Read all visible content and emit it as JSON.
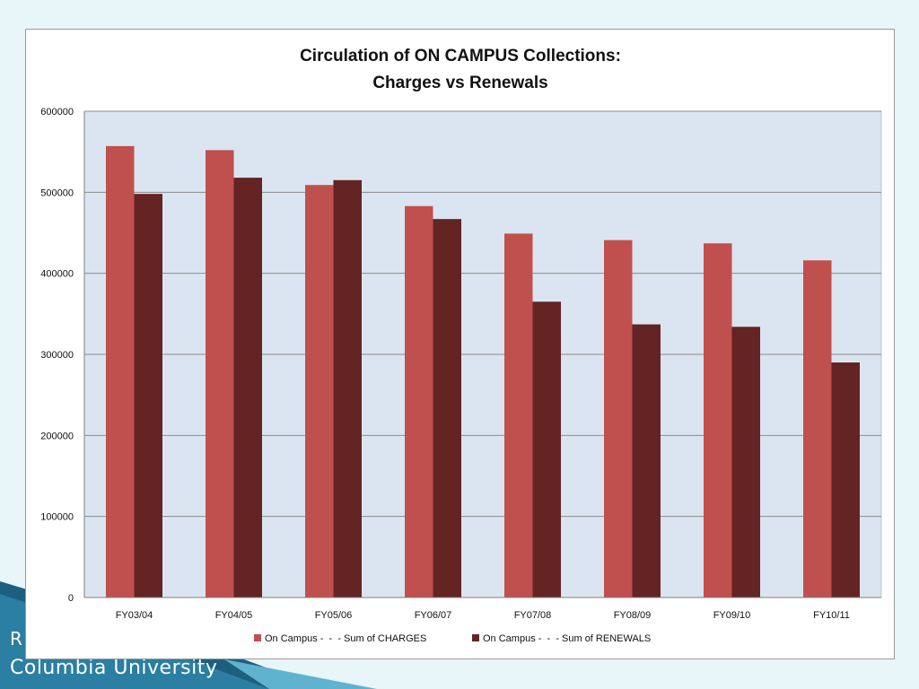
{
  "slide": {
    "footer_org": "R",
    "footer_university": "Columbia University"
  },
  "chart_data": {
    "type": "bar",
    "title": "Circulation of ON CAMPUS Collections:",
    "subtitle": "Charges vs Renewals",
    "xlabel": "",
    "ylabel": "",
    "categories": [
      "FY03/04",
      "FY04/05",
      "FY05/06",
      "FY06/07",
      "FY07/08",
      "FY08/09",
      "FY09/10",
      "FY10/11"
    ],
    "series": [
      {
        "name": "On Campus -  -  - Sum of CHARGES",
        "color": "#c0504d",
        "values": [
          557000,
          552000,
          509000,
          483000,
          449000,
          441000,
          437000,
          416000
        ]
      },
      {
        "name": "On Campus -  -  - Sum of RENEWALS",
        "color": "#632423",
        "values": [
          498000,
          518000,
          515000,
          467000,
          365000,
          337000,
          334000,
          290000
        ]
      }
    ],
    "ylim": [
      0,
      600000
    ],
    "yticks": [
      0,
      100000,
      200000,
      300000,
      400000,
      500000,
      600000
    ],
    "grid": true,
    "legend": "bottom",
    "plot_background": "#dbe5f1",
    "gridline_color": "#8c8c8c"
  }
}
